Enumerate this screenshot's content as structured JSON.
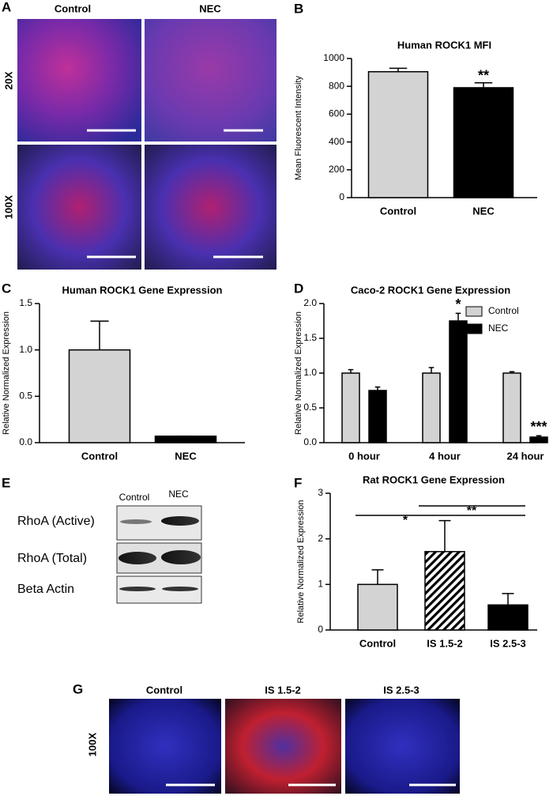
{
  "figure": {
    "panel_letters": [
      "A",
      "B",
      "C",
      "D",
      "E",
      "F",
      "G"
    ],
    "panel_a": {
      "columns": [
        "Control",
        "NEC"
      ],
      "rows": [
        "20X",
        "100X"
      ]
    },
    "panel_e": {
      "columns": [
        "Control",
        "NEC"
      ],
      "rows": [
        "RhoA (Active)",
        "RhoA (Total)",
        "Beta Actin"
      ]
    },
    "panel_g": {
      "columns": [
        "Control",
        "IS 1.5-2",
        "IS 2.5-3"
      ],
      "rows": [
        "100X"
      ]
    }
  },
  "chart_data": [
    {
      "type": "bar",
      "title": "Human ROCK1 MFI",
      "y_label": "Mean  Fluorescent Intensity",
      "categories": [
        "Control",
        "NEC"
      ],
      "values": [
        905,
        790
      ],
      "errors": [
        25,
        35
      ],
      "colors": [
        "#d3d3d3",
        "#000000"
      ],
      "value_annotations": [
        null,
        "**"
      ],
      "ylim": [
        0,
        1000
      ],
      "yticks": [
        0,
        200,
        400,
        600,
        800,
        1000
      ]
    },
    {
      "type": "bar",
      "title": "Human ROCK1 Gene Expression",
      "y_label": "Relative Normalized Expression",
      "categories": [
        "Control",
        "NEC"
      ],
      "values": [
        1.0,
        0.07
      ],
      "errors": [
        0.31,
        0
      ],
      "colors": [
        "#d3d3d3",
        "#000000"
      ],
      "ylim": [
        0,
        1.5
      ],
      "yticks": [
        {
          "value": 0,
          "label": "0.0"
        },
        0.5,
        {
          "value": 1,
          "label": "1.0"
        },
        1.5
      ]
    },
    {
      "type": "grouped_bar",
      "title": "Caco-2 ROCK1 Gene Expression",
      "y_label": "Relative Normalized Expression",
      "categories": [
        "0 hour",
        "4 hour",
        "24 hour"
      ],
      "series": [
        {
          "name": "Control",
          "color": "#d3d3d3",
          "values": [
            1.0,
            1.0,
            1.0
          ],
          "errors": [
            0.05,
            0.08,
            0.02
          ],
          "value_annotations": [
            null,
            null,
            null
          ]
        },
        {
          "name": "NEC",
          "color": "#000000",
          "values": [
            0.75,
            1.75,
            0.08
          ],
          "errors": [
            0.05,
            0.11,
            0.02
          ],
          "value_annotations": [
            null,
            "*",
            "***"
          ]
        }
      ],
      "legend": "top-right",
      "ylim": [
        0,
        2
      ],
      "yticks": [
        {
          "value": 0,
          "label": "0.0"
        },
        0.5,
        {
          "value": 1,
          "label": "1.0"
        },
        1.5,
        {
          "value": 2,
          "label": "2.0"
        }
      ]
    },
    {
      "type": "bar",
      "title": "Rat ROCK1 Gene Expression",
      "y_label": "Relative Normalized Expression",
      "categories": [
        "Control",
        "IS 1.5-2",
        "IS 2.5-3"
      ],
      "values": [
        1.0,
        1.72,
        0.55
      ],
      "errors": [
        0.32,
        0.68,
        0.25
      ],
      "colors": [
        "#d3d3d3",
        "hatch",
        "#000000"
      ],
      "brackets": [
        {
          "label": "*"
        },
        {
          "label": "**"
        }
      ],
      "ylim": [
        0,
        3
      ],
      "yticks": [
        0,
        1,
        2,
        3
      ]
    }
  ]
}
